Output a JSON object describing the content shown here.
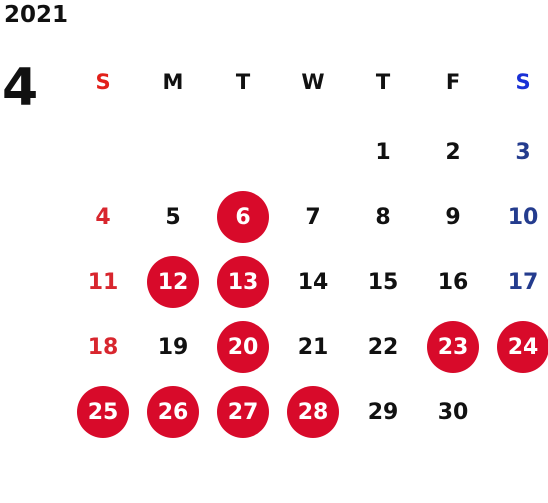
{
  "calendar": {
    "year": "2021",
    "month": "4",
    "weekdays": [
      "S",
      "M",
      "T",
      "W",
      "T",
      "F",
      "S"
    ],
    "start_weekday": 4,
    "days_in_month": 30,
    "highlighted_days": [
      6,
      12,
      13,
      20,
      23,
      24,
      25,
      26,
      27,
      28
    ],
    "colors": {
      "text": "#111111",
      "sunday": "#d8262e",
      "sunday_header": "#e2201a",
      "saturday": "#243c8e",
      "saturday_header": "#1930d6",
      "highlight": "#d80a2a",
      "highlight_text": "#ffffff"
    }
  }
}
